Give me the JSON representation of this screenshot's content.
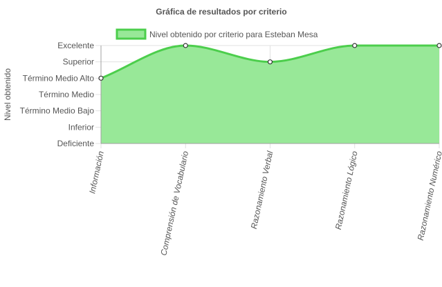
{
  "chart_data": {
    "type": "area",
    "title": "Gráfica de resultados por criterio",
    "xlabel": "",
    "ylabel": "Nivel obtenido",
    "categories": [
      "Información",
      "Comprensión de Vocabulario",
      "Razonamiento Verbal",
      "Razonamiento Lógico",
      "Razonamiento Numérico"
    ],
    "y_levels": [
      "Deficiente",
      "Inferior",
      "Término Medio Bajo",
      "Término Medio",
      "Término Medio Alto",
      "Superior",
      "Excelente"
    ],
    "series": [
      {
        "name": "Nivel obtenido por criterio para Esteban Mesa",
        "values": [
          "Término Medio Alto",
          "Excelente",
          "Superior",
          "Excelente",
          "Excelente"
        ]
      }
    ],
    "legend_position": "top",
    "grid": true,
    "colors": {
      "line": "#4cce4c",
      "fill": "#98e898",
      "grid": "#e0e0e0",
      "axis": "#a0a0a0",
      "point_fill": "#ffffff",
      "point_stroke": "#333333"
    }
  }
}
